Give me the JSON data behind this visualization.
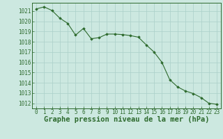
{
  "x": [
    0,
    1,
    2,
    3,
    4,
    5,
    6,
    7,
    8,
    9,
    10,
    11,
    12,
    13,
    14,
    15,
    16,
    17,
    18,
    19,
    20,
    21,
    22,
    23
  ],
  "y": [
    1021.2,
    1021.4,
    1021.05,
    1020.3,
    1019.8,
    1018.65,
    1019.3,
    1018.3,
    1018.4,
    1018.75,
    1018.75,
    1018.7,
    1018.6,
    1018.45,
    1017.7,
    1017.0,
    1016.0,
    1014.3,
    1013.6,
    1013.2,
    1012.95,
    1012.55,
    1012.0,
    1011.9
  ],
  "xlabel": "Graphe pression niveau de la mer (hPa)",
  "ylim": [
    1011.5,
    1021.8
  ],
  "xlim": [
    -0.5,
    23.5
  ],
  "yticks": [
    1012,
    1013,
    1014,
    1015,
    1016,
    1017,
    1018,
    1019,
    1020,
    1021
  ],
  "xticks": [
    0,
    1,
    2,
    3,
    4,
    5,
    6,
    7,
    8,
    9,
    10,
    11,
    12,
    13,
    14,
    15,
    16,
    17,
    18,
    19,
    20,
    21,
    22,
    23
  ],
  "line_color": "#2d6a2d",
  "marker_color": "#2d6a2d",
  "bg_color": "#cce8e0",
  "grid_color": "#aacfc8",
  "tick_fontsize": 5.5,
  "xlabel_fontsize": 7.5,
  "xlabel_fontweight": "bold"
}
